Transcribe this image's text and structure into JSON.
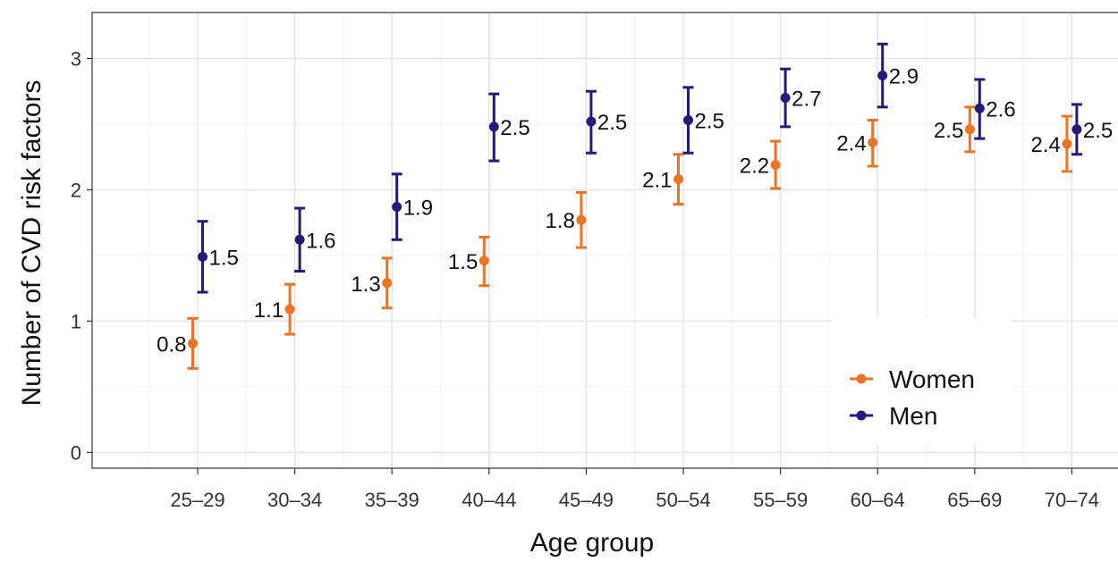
{
  "chart_data": {
    "type": "scatter",
    "title": "",
    "xlabel": "Age group",
    "ylabel": "Number of CVD risk factors",
    "categories": [
      "25–29",
      "30–34",
      "35–39",
      "40–44",
      "45–49",
      "50–54",
      "55–59",
      "60–64",
      "65–69",
      "70–74"
    ],
    "ylim": [
      -0.12,
      3.35
    ],
    "yticks": [
      0,
      1,
      2,
      3
    ],
    "grid": true,
    "legend_position": "bottom-right",
    "series": [
      {
        "name": "Women",
        "color": "#ED7425",
        "values": [
          0.83,
          1.09,
          1.29,
          1.46,
          1.77,
          2.08,
          2.19,
          2.36,
          2.46,
          2.35
        ],
        "lower": [
          0.64,
          0.9,
          1.1,
          1.27,
          1.56,
          1.89,
          2.01,
          2.18,
          2.29,
          2.14
        ],
        "upper": [
          1.02,
          1.28,
          1.48,
          1.64,
          1.98,
          2.27,
          2.37,
          2.53,
          2.63,
          2.56
        ],
        "labels": [
          "0.8",
          "1.1",
          "1.3",
          "1.5",
          "1.8",
          "2.1",
          "2.2",
          "2.4",
          "2.5",
          "2.4"
        ]
      },
      {
        "name": "Men",
        "color": "#27197A",
        "values": [
          1.49,
          1.62,
          1.87,
          2.48,
          2.52,
          2.53,
          2.7,
          2.87,
          2.62,
          2.46
        ],
        "lower": [
          1.22,
          1.38,
          1.62,
          2.22,
          2.28,
          2.28,
          2.48,
          2.63,
          2.39,
          2.27
        ],
        "upper": [
          1.76,
          1.86,
          2.12,
          2.73,
          2.75,
          2.78,
          2.92,
          3.11,
          2.84,
          2.65
        ],
        "labels": [
          "1.5",
          "1.6",
          "1.9",
          "2.5",
          "2.5",
          "2.5",
          "2.7",
          "2.9",
          "2.6",
          "2.5"
        ]
      }
    ]
  }
}
